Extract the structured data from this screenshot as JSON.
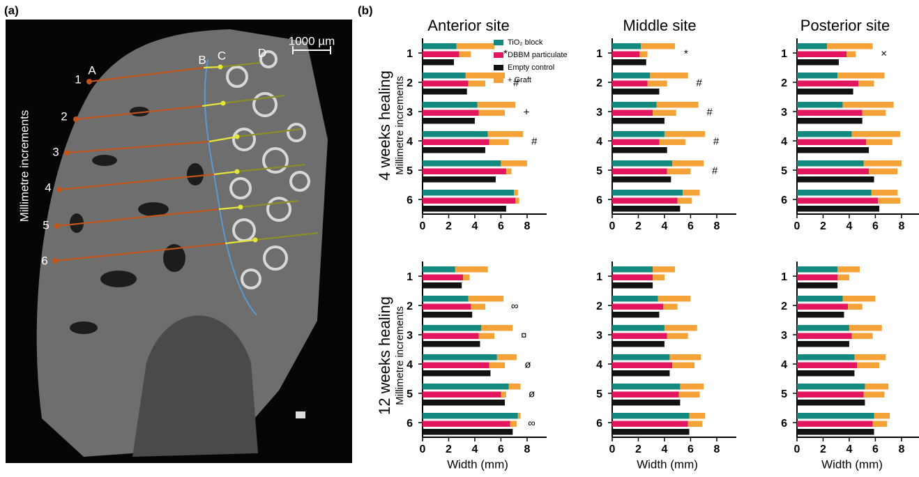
{
  "panel_labels": [
    "(a)",
    "(b)"
  ],
  "image_panel": {
    "scale_bar": "1000 µm",
    "axis_label": "Millimetre increments",
    "increments": [
      "1",
      "2",
      "3",
      "4",
      "5",
      "6"
    ],
    "points": [
      "A",
      "B",
      "C",
      "D"
    ]
  },
  "columns": [
    "Anterior site",
    "Middle site",
    "Posterior site"
  ],
  "rows": [
    {
      "label": "4 weeks healing",
      "sublabel": "Millimetre increments"
    },
    {
      "label": "12 weeks healing",
      "sublabel": "Millimetre increments"
    }
  ],
  "chart_data": [
    {
      "type": "bar",
      "orientation": "horizontal",
      "categories": [
        "1",
        "2",
        "3",
        "4",
        "5",
        "6"
      ],
      "xlim": [
        0,
        9.5
      ],
      "xticks": [
        0,
        2,
        4,
        6,
        8
      ],
      "legend": "top-right",
      "series": [
        {
          "name": "TiO₂ block",
          "color": "#14897f",
          "values": [
            2.6,
            3.3,
            4.2,
            5.0,
            6.0,
            7.0
          ]
        },
        {
          "name": "DBBM particulate",
          "color": "#e2155f",
          "values": [
            2.8,
            3.5,
            4.3,
            5.1,
            6.4,
            7.1
          ]
        },
        {
          "name": "Empty control",
          "color": "#111111",
          "values": [
            2.4,
            3.4,
            4.0,
            4.8,
            5.6,
            6.4
          ]
        },
        {
          "name": "+ Graft",
          "color": "#f4a338",
          "values": [
            2.9,
            3.0,
            2.9,
            2.7,
            2.0,
            0.3
          ],
          "stack_on": 0
        },
        {
          "name": "+ Graft",
          "color": "#f4a338",
          "values": [
            0.9,
            1.3,
            2.0,
            1.5,
            0.4,
            0.3
          ],
          "stack_on": 1
        }
      ],
      "annotations": [
        "*",
        "#",
        "+",
        "#",
        null,
        null
      ]
    },
    {
      "type": "bar",
      "orientation": "horizontal",
      "categories": [
        "1",
        "2",
        "3",
        "4",
        "5",
        "6"
      ],
      "xlim": [
        0,
        9.5
      ],
      "xticks": [
        0,
        2,
        4,
        6,
        8
      ],
      "series": [
        {
          "name": "TiO₂ block",
          "color": "#14897f",
          "values": [
            2.2,
            2.9,
            3.4,
            4.0,
            4.6,
            5.4
          ]
        },
        {
          "name": "DBBM particulate",
          "color": "#e2155f",
          "values": [
            2.1,
            2.7,
            3.1,
            3.6,
            4.2,
            5.0
          ]
        },
        {
          "name": "Empty control",
          "color": "#111111",
          "values": [
            2.6,
            3.6,
            4.0,
            4.2,
            4.5,
            5.2
          ]
        },
        {
          "name": "+ Graft",
          "color": "#f4a338",
          "values": [
            2.6,
            2.9,
            3.2,
            3.1,
            2.4,
            1.3
          ],
          "stack_on": 0
        },
        {
          "name": "+ Graft",
          "color": "#f4a338",
          "values": [
            0.6,
            1.5,
            1.8,
            2.0,
            1.8,
            1.1
          ],
          "stack_on": 1
        }
      ],
      "annotations": [
        "*",
        "#",
        "#",
        "#",
        "#",
        null
      ]
    },
    {
      "type": "bar",
      "orientation": "horizontal",
      "categories": [
        "1",
        "2",
        "3",
        "4",
        "5",
        "6"
      ],
      "xlim": [
        0,
        9.5
      ],
      "xticks": [
        0,
        2,
        4,
        6,
        8
      ],
      "series": [
        {
          "name": "TiO₂ block",
          "color": "#14897f",
          "values": [
            2.3,
            3.1,
            3.5,
            4.2,
            5.1,
            5.7
          ]
        },
        {
          "name": "DBBM particulate",
          "color": "#e2155f",
          "values": [
            3.8,
            4.7,
            5.0,
            5.3,
            5.5,
            6.2
          ]
        },
        {
          "name": "Empty control",
          "color": "#111111",
          "values": [
            3.2,
            4.3,
            5.0,
            5.5,
            5.9,
            6.3
          ]
        },
        {
          "name": "+ Graft",
          "color": "#f4a338",
          "values": [
            3.5,
            3.6,
            3.9,
            3.7,
            2.9,
            2.0
          ],
          "stack_on": 0
        },
        {
          "name": "+ Graft",
          "color": "#f4a338",
          "values": [
            0.7,
            1.2,
            1.8,
            2.0,
            2.2,
            1.7
          ],
          "stack_on": 1
        }
      ],
      "annotations": [
        "×",
        null,
        null,
        null,
        null,
        null
      ]
    },
    {
      "type": "bar",
      "orientation": "horizontal",
      "categories": [
        "1",
        "2",
        "3",
        "4",
        "5",
        "6"
      ],
      "xlim": [
        0,
        9.5
      ],
      "xticks": [
        0,
        2,
        4,
        6,
        8
      ],
      "xlabel": "Width (mm)",
      "series": [
        {
          "name": "TiO₂ block",
          "color": "#14897f",
          "values": [
            2.5,
            3.5,
            4.5,
            5.7,
            6.6,
            7.3
          ]
        },
        {
          "name": "DBBM particulate",
          "color": "#e2155f",
          "values": [
            3.1,
            3.7,
            4.3,
            5.1,
            6.0,
            6.7
          ]
        },
        {
          "name": "Empty control",
          "color": "#111111",
          "values": [
            3.0,
            3.8,
            4.4,
            5.2,
            6.3,
            6.9
          ]
        },
        {
          "name": "+ Graft",
          "color": "#f4a338",
          "values": [
            2.5,
            2.7,
            2.4,
            1.5,
            0.9,
            0.2
          ],
          "stack_on": 0
        },
        {
          "name": "+ Graft",
          "color": "#f4a338",
          "values": [
            0.5,
            1.1,
            1.2,
            1.2,
            0.4,
            0.5
          ],
          "stack_on": 1
        }
      ],
      "annotations": [
        null,
        "∞",
        "¤",
        "ø",
        "ø",
        "∞"
      ]
    },
    {
      "type": "bar",
      "orientation": "horizontal",
      "categories": [
        "1",
        "2",
        "3",
        "4",
        "5",
        "6"
      ],
      "xlim": [
        0,
        9.5
      ],
      "xticks": [
        0,
        2,
        4,
        6,
        8
      ],
      "xlabel": "Width (mm)",
      "series": [
        {
          "name": "TiO₂ block",
          "color": "#14897f",
          "values": [
            3.1,
            3.5,
            4.0,
            4.4,
            5.2,
            5.9
          ]
        },
        {
          "name": "DBBM particulate",
          "color": "#e2155f",
          "values": [
            3.1,
            3.9,
            4.2,
            4.6,
            5.1,
            5.8
          ]
        },
        {
          "name": "Empty control",
          "color": "#111111",
          "values": [
            3.1,
            3.6,
            4.0,
            4.4,
            5.2,
            5.9
          ]
        },
        {
          "name": "+ Graft",
          "color": "#f4a338",
          "values": [
            1.7,
            2.5,
            2.5,
            2.4,
            1.8,
            1.2
          ],
          "stack_on": 0
        },
        {
          "name": "+ Graft",
          "color": "#f4a338",
          "values": [
            0.9,
            1.1,
            1.6,
            1.7,
            1.6,
            1.1
          ],
          "stack_on": 1
        }
      ],
      "annotations": [
        null,
        null,
        null,
        null,
        null,
        null
      ]
    },
    {
      "type": "bar",
      "orientation": "horizontal",
      "categories": [
        "1",
        "2",
        "3",
        "4",
        "5",
        "6"
      ],
      "xlim": [
        0,
        9.5
      ],
      "xticks": [
        0,
        2,
        4,
        6,
        8
      ],
      "xlabel": "Width (mm)",
      "series": [
        {
          "name": "TiO₂ block",
          "color": "#14897f",
          "values": [
            3.1,
            3.5,
            4.0,
            4.4,
            5.2,
            5.9
          ]
        },
        {
          "name": "DBBM particulate",
          "color": "#e2155f",
          "values": [
            3.1,
            3.9,
            4.2,
            4.6,
            5.1,
            5.8
          ]
        },
        {
          "name": "Empty control",
          "color": "#111111",
          "values": [
            3.1,
            3.6,
            4.0,
            4.4,
            5.2,
            5.9
          ]
        },
        {
          "name": "+ Graft",
          "color": "#f4a338",
          "values": [
            1.7,
            2.5,
            2.5,
            2.4,
            1.8,
            1.2
          ],
          "stack_on": 0
        },
        {
          "name": "+ Graft",
          "color": "#f4a338",
          "values": [
            0.9,
            1.1,
            1.6,
            1.7,
            1.6,
            1.1
          ],
          "stack_on": 1
        }
      ],
      "annotations": [
        null,
        null,
        null,
        null,
        null,
        null
      ]
    }
  ]
}
